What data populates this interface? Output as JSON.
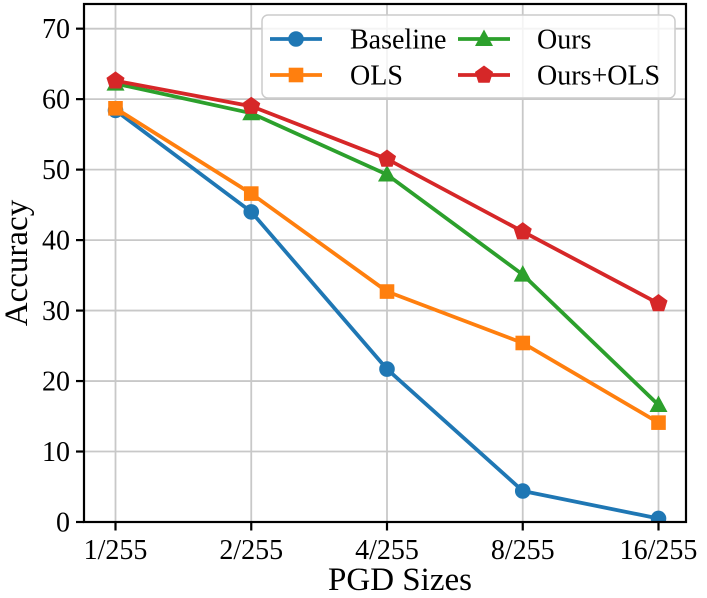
{
  "figure": {
    "background": "#ffffff"
  },
  "chart_data": {
    "type": "line",
    "title": "",
    "xlabel": "PGD Sizes",
    "ylabel": "Accuracy",
    "categories": [
      "1/255",
      "2/255",
      "4/255",
      "8/255",
      "16/255"
    ],
    "series": [
      {
        "name": "Baseline",
        "color": "#1f77b4",
        "marker": "circle",
        "values": [
          58.4,
          44.0,
          21.7,
          4.4,
          0.5
        ]
      },
      {
        "name": "OLS",
        "color": "#ff7f0e",
        "marker": "square",
        "values": [
          58.7,
          46.6,
          32.7,
          25.4,
          14.1
        ]
      },
      {
        "name": "Ours",
        "color": "#2ca02c",
        "marker": "triangle-up",
        "values": [
          62.2,
          58.0,
          49.3,
          35.1,
          16.6
        ]
      },
      {
        "name": "Ours+OLS",
        "color": "#d62728",
        "marker": "pentagon",
        "values": [
          62.6,
          59.0,
          51.5,
          41.2,
          31.0
        ]
      }
    ],
    "ylim": [
      0,
      73.5
    ],
    "yticks": [
      0,
      10,
      20,
      30,
      40,
      50,
      60,
      70
    ],
    "grid": true,
    "legend": {
      "position": "upper-right",
      "columns": 2,
      "fill_order": "column-major",
      "frame_color": "#cccccc",
      "frame_fill": "#ffffff"
    },
    "style": {
      "spine_color": "#000000",
      "grid_color": "#c8c8c8",
      "line_width": 3.8
    }
  }
}
